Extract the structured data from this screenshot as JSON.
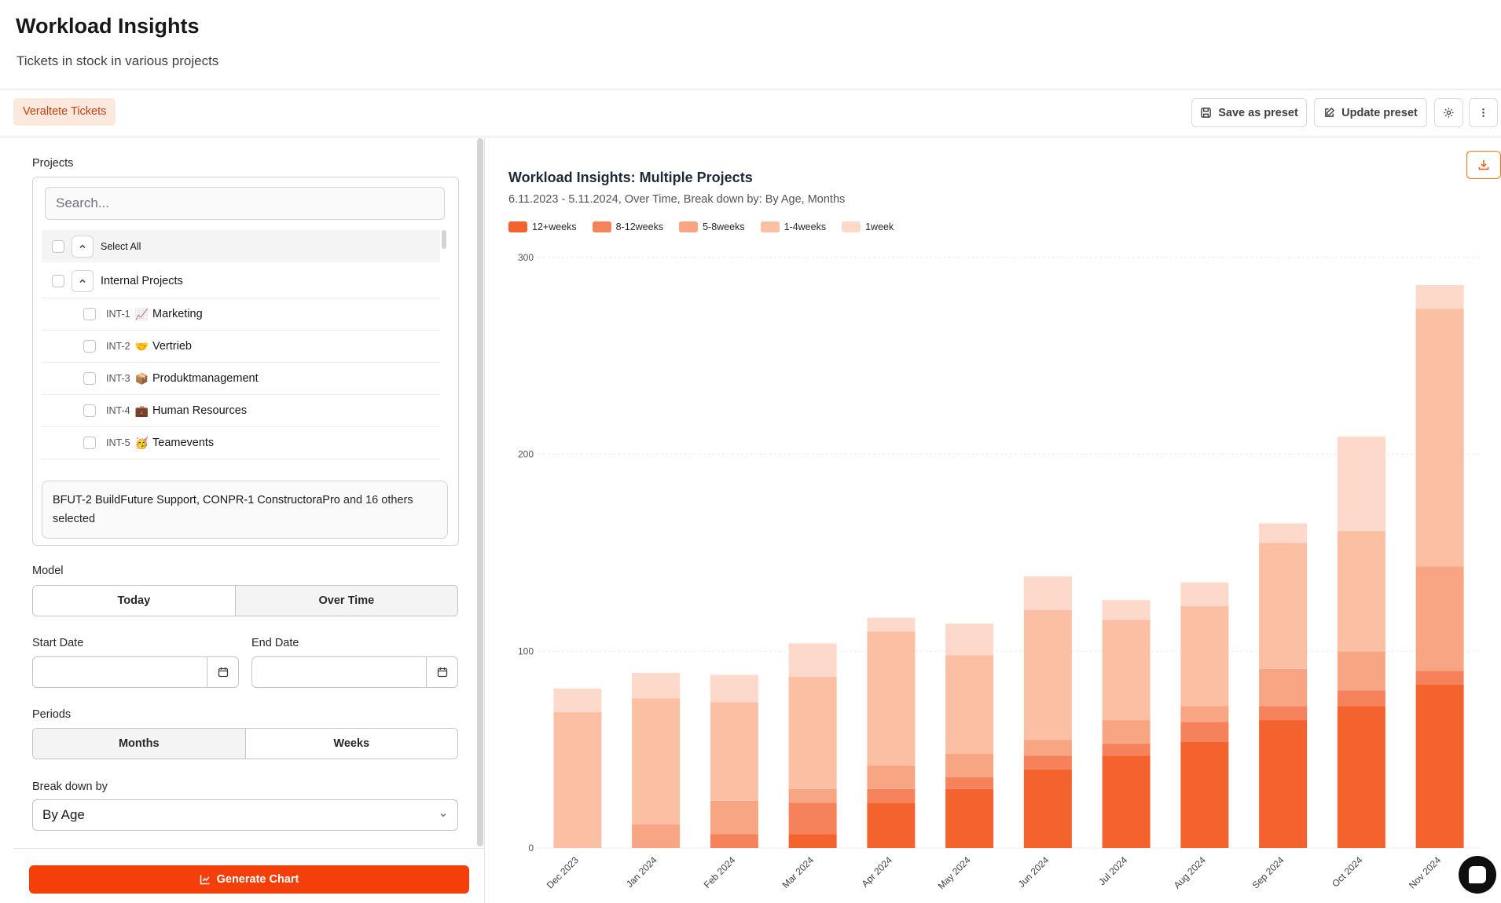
{
  "header": {
    "title": "Workload Insights",
    "subtitle": "Tickets in stock in various projects"
  },
  "toolbar": {
    "tag": "Veraltete Tickets",
    "save_preset": "Save as preset",
    "update_preset": "Update preset",
    "icons": [
      "save-icon",
      "edit-icon",
      "gear-icon",
      "more-vertical-icon"
    ]
  },
  "projects": {
    "label": "Projects",
    "search_placeholder": "Search...",
    "select_all": "Select All",
    "group": "Internal Projects",
    "items": [
      {
        "code": "INT-1",
        "emoji": "📈",
        "name": "Marketing"
      },
      {
        "code": "INT-2",
        "emoji": "🤝",
        "name": "Vertrieb"
      },
      {
        "code": "INT-3",
        "emoji": "📦",
        "name": "Produktmanagement"
      },
      {
        "code": "INT-4",
        "emoji": "💼",
        "name": "Human Resources"
      },
      {
        "code": "INT-5",
        "emoji": "🥳",
        "name": "Teamevents"
      }
    ],
    "selected": {
      "names": "BFUT-2 BuildFuture Support, CONPR-1 ConstructoraPro",
      "rest": " and 16 others selected"
    }
  },
  "model": {
    "label": "Model",
    "options": [
      "Today",
      "Over Time"
    ],
    "selected": "Today"
  },
  "dates": {
    "start_label": "Start Date",
    "end_label": "End Date",
    "start_value": "",
    "end_value": ""
  },
  "periods": {
    "label": "Periods",
    "options": [
      "Months",
      "Weeks"
    ],
    "selected": "Weeks"
  },
  "breakdown": {
    "label": "Break down by",
    "value": "By Age"
  },
  "generate": {
    "label": "Generate Chart"
  },
  "chart_header": {
    "title": "Workload Insights: Multiple Projects",
    "subtitle": "6.11.2023 - 5.11.2024, Over Time, Break down by: By Age, Months"
  },
  "chart_data": {
    "type": "bar",
    "stacked": true,
    "title": "Workload Insights: Multiple Projects",
    "subtitle": "6.11.2023 - 5.11.2024, Over Time, Break down by: By Age, Months",
    "categories": [
      "Dec 2023",
      "Jan 2024",
      "Feb 2024",
      "Mar 2024",
      "Apr 2024",
      "May 2024",
      "Jun 2024",
      "Jul 2024",
      "Aug 2024",
      "Sep 2024",
      "Oct 2024",
      "Nov 2024"
    ],
    "series": [
      {
        "name": "12+weeks",
        "color": "#f4622d",
        "values": [
          0,
          0,
          0,
          7,
          23,
          30,
          40,
          47,
          54,
          65,
          72,
          83
        ]
      },
      {
        "name": "8-12weeks",
        "color": "#f5825a",
        "values": [
          0,
          0,
          7,
          16,
          7,
          6,
          7,
          6,
          10,
          7,
          8,
          7
        ]
      },
      {
        "name": "5-8weeks",
        "color": "#f8a583",
        "values": [
          0,
          12,
          17,
          7,
          12,
          12,
          8,
          12,
          8,
          19,
          20,
          53
        ]
      },
      {
        "name": "1-4weeks",
        "color": "#fbbfa3",
        "values": [
          69,
          64,
          50,
          57,
          68,
          50,
          66,
          51,
          51,
          64,
          61,
          131
        ]
      },
      {
        "name": "1week",
        "color": "#fdd9cb",
        "values": [
          12,
          13,
          14,
          17,
          7,
          16,
          17,
          10,
          12,
          10,
          48,
          12
        ]
      }
    ],
    "yticks": [
      0,
      100,
      200,
      300
    ],
    "ylim": [
      0,
      300
    ],
    "xlabel": "",
    "ylabel": "",
    "grid": true,
    "legend_position": "top-left"
  }
}
